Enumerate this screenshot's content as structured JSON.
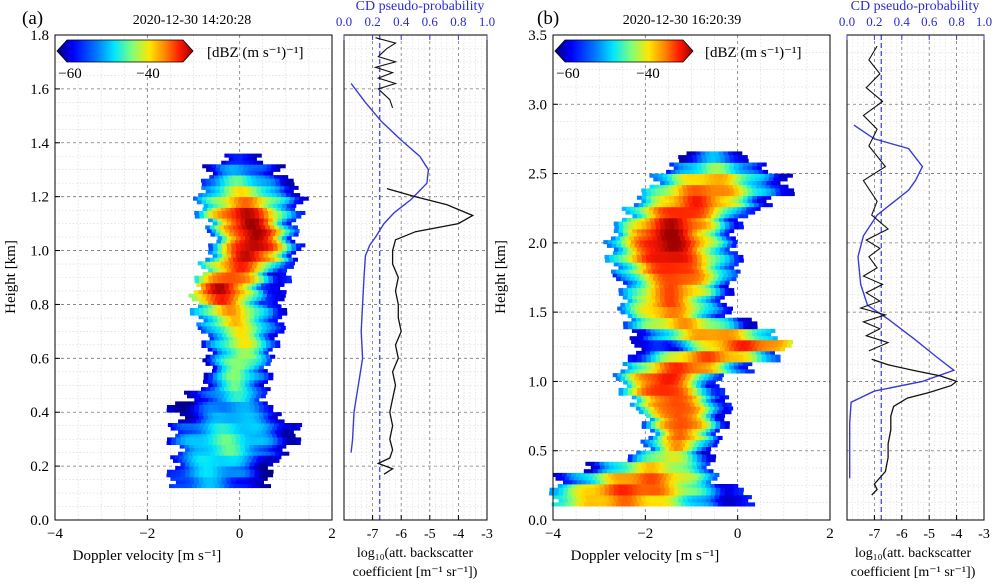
{
  "colors": {
    "black_line": "#111111",
    "blue_line": "#3a3ad8",
    "grid": "#9a9a9a",
    "colormap": [
      "#00007f",
      "#0000ff",
      "#0080ff",
      "#00e5ff",
      "#7dff7a",
      "#ffe600",
      "#ff8000",
      "#ff1a00",
      "#9e0000"
    ]
  },
  "chart_data": [
    {
      "panel": "(a)",
      "timestamp": "2020-12-30 14:20:28",
      "type": "heatmap",
      "colorbar": {
        "label": "[dBZ (m s⁻¹)⁻¹]",
        "ticks": [
          "−60",
          "−40"
        ]
      },
      "xlabel": "Doppler velocity [m s⁻¹]",
      "ylabel": "Height [km]",
      "xlim": [
        -4,
        2
      ],
      "ylim": [
        0,
        1.8
      ],
      "xticks": [
        "−4",
        "−2",
        "0",
        "2"
      ],
      "yticks": [
        "0.0",
        "0.2",
        "0.4",
        "0.6",
        "0.8",
        "1.0",
        "1.2",
        "1.4",
        "1.6",
        "1.8"
      ],
      "spectrum": [
        {
          "h": 0.14,
          "lo": -1.5,
          "hi": 0.55,
          "c": -0.7,
          "i": 0.3
        },
        {
          "h": 0.18,
          "lo": -1.5,
          "hi": 0.6,
          "c": -0.6,
          "i": 0.35
        },
        {
          "h": 0.22,
          "lo": -1.4,
          "hi": 0.8,
          "c": -0.5,
          "i": 0.4
        },
        {
          "h": 0.26,
          "lo": -1.3,
          "hi": 1.0,
          "c": -0.3,
          "i": 0.45
        },
        {
          "h": 0.3,
          "lo": -1.5,
          "hi": 1.25,
          "c": -0.3,
          "i": 0.45
        },
        {
          "h": 0.34,
          "lo": -1.45,
          "hi": 1.2,
          "c": -0.2,
          "i": 0.4
        },
        {
          "h": 0.38,
          "lo": -1.3,
          "hi": 0.9,
          "c": -0.1,
          "i": 0.35
        },
        {
          "h": 0.42,
          "lo": -1.5,
          "hi": 0.6,
          "c": -0.1,
          "i": 0.3
        },
        {
          "h": 0.46,
          "lo": -1.1,
          "hi": 0.5,
          "c": -0.1,
          "i": 0.4
        },
        {
          "h": 0.5,
          "lo": -0.8,
          "hi": 0.6,
          "c": -0.1,
          "i": 0.45
        },
        {
          "h": 0.54,
          "lo": -0.7,
          "hi": 0.6,
          "c": -0.05,
          "i": 0.5
        },
        {
          "h": 0.58,
          "lo": -0.7,
          "hi": 0.6,
          "c": 0.0,
          "i": 0.55
        },
        {
          "h": 0.62,
          "lo": -0.7,
          "hi": 0.7,
          "c": 0.05,
          "i": 0.55
        },
        {
          "h": 0.66,
          "lo": -0.75,
          "hi": 0.8,
          "c": 0.05,
          "i": 0.6
        },
        {
          "h": 0.7,
          "lo": -0.8,
          "hi": 0.85,
          "c": 0.0,
          "i": 0.6
        },
        {
          "h": 0.74,
          "lo": -0.9,
          "hi": 0.9,
          "c": -0.1,
          "i": 0.65
        },
        {
          "h": 0.78,
          "lo": -1.0,
          "hi": 0.9,
          "c": -0.2,
          "i": 0.7
        },
        {
          "h": 0.82,
          "lo": -1.0,
          "hi": 0.9,
          "c": -0.4,
          "i": 0.85
        },
        {
          "h": 0.86,
          "lo": -0.95,
          "hi": 0.95,
          "c": -0.4,
          "i": 0.95
        },
        {
          "h": 0.9,
          "lo": -0.9,
          "hi": 1.0,
          "c": -0.2,
          "i": 0.85
        },
        {
          "h": 0.94,
          "lo": -0.8,
          "hi": 1.1,
          "c": 0.0,
          "i": 0.85
        },
        {
          "h": 0.98,
          "lo": -0.7,
          "hi": 1.2,
          "c": 0.2,
          "i": 0.95
        },
        {
          "h": 1.02,
          "lo": -0.6,
          "hi": 1.25,
          "c": 0.3,
          "i": 1.0
        },
        {
          "h": 1.06,
          "lo": -0.6,
          "hi": 1.2,
          "c": 0.3,
          "i": 1.0
        },
        {
          "h": 1.1,
          "lo": -0.7,
          "hi": 1.15,
          "c": 0.2,
          "i": 1.0
        },
        {
          "h": 1.14,
          "lo": -0.9,
          "hi": 1.25,
          "c": 0.1,
          "i": 0.95
        },
        {
          "h": 1.18,
          "lo": -0.9,
          "hi": 1.3,
          "c": 0.1,
          "i": 0.75
        },
        {
          "h": 1.22,
          "lo": -0.85,
          "hi": 1.2,
          "c": 0.05,
          "i": 0.6
        },
        {
          "h": 1.26,
          "lo": -0.75,
          "hi": 1.05,
          "c": 0.0,
          "i": 0.45
        },
        {
          "h": 1.3,
          "lo": -0.7,
          "hi": 0.8,
          "c": 0.0,
          "i": 0.3
        },
        {
          "h": 1.34,
          "lo": -0.35,
          "hi": 0.45,
          "c": 0.0,
          "i": 0.2
        }
      ],
      "profile_top_axis": {
        "label": "CD pseudo-probability",
        "range": [
          0,
          1
        ],
        "ticks": [
          "0.0",
          "0.2",
          "0.4",
          "0.6",
          "0.8",
          "1.0"
        ]
      },
      "profile_xlabel_line1": "log₁₀(att. backscatter",
      "profile_xlabel_line2": "coefficient [m⁻¹ sr⁻¹])",
      "profile_xlim": [
        -8,
        -3
      ],
      "profile_xticks": [
        "-7",
        "-6",
        "-5",
        "-4",
        "-3"
      ],
      "threshold_probability": 0.25,
      "backscatter": [
        [
          -6.6,
          0.17
        ],
        [
          -6.3,
          0.19
        ],
        [
          -6.8,
          0.21
        ],
        [
          -6.4,
          0.23
        ],
        [
          -6.3,
          0.26
        ],
        [
          -6.4,
          0.3
        ],
        [
          -6.3,
          0.35
        ],
        [
          -6.4,
          0.4
        ],
        [
          -6.3,
          0.45
        ],
        [
          -6.2,
          0.5
        ],
        [
          -6.3,
          0.55
        ],
        [
          -6.1,
          0.6
        ],
        [
          -6.2,
          0.65
        ],
        [
          -6.0,
          0.7
        ],
        [
          -6.1,
          0.75
        ],
        [
          -6.1,
          0.8
        ],
        [
          -6.2,
          0.85
        ],
        [
          -6.1,
          0.9
        ],
        [
          -6.3,
          0.95
        ],
        [
          -6.3,
          1.0
        ],
        [
          -6.2,
          1.04
        ],
        [
          -5.5,
          1.07
        ],
        [
          -4.0,
          1.1
        ],
        [
          -3.5,
          1.13
        ],
        [
          -4.4,
          1.17
        ],
        [
          -5.5,
          1.2
        ],
        [
          -6.5,
          1.23
        ]
      ],
      "backscatter_top": [
        [
          -6.3,
          1.53
        ],
        [
          -6.4,
          1.56
        ],
        [
          -6.8,
          1.6
        ],
        [
          -6.2,
          1.62
        ],
        [
          -6.8,
          1.64
        ],
        [
          -6.3,
          1.66
        ],
        [
          -6.9,
          1.68
        ],
        [
          -6.2,
          1.7
        ],
        [
          -6.8,
          1.72
        ],
        [
          -6.5,
          1.75
        ],
        [
          -6.2,
          1.77
        ],
        [
          -6.9,
          1.79
        ]
      ],
      "probability": [
        [
          0.05,
          0.25
        ],
        [
          0.06,
          0.3
        ],
        [
          0.07,
          0.4
        ],
        [
          0.1,
          0.5
        ],
        [
          0.13,
          0.6
        ],
        [
          0.12,
          0.7
        ],
        [
          0.13,
          0.8
        ],
        [
          0.14,
          0.9
        ],
        [
          0.15,
          0.98
        ],
        [
          0.18,
          1.02
        ],
        [
          0.22,
          1.05
        ],
        [
          0.28,
          1.1
        ],
        [
          0.35,
          1.14
        ],
        [
          0.47,
          1.19
        ],
        [
          0.58,
          1.25
        ],
        [
          0.59,
          1.3
        ],
        [
          0.53,
          1.35
        ],
        [
          0.4,
          1.41
        ],
        [
          0.26,
          1.48
        ],
        [
          0.15,
          1.55
        ],
        [
          0.05,
          1.62
        ]
      ]
    },
    {
      "panel": "(b)",
      "timestamp": "2020-12-30 16:20:39",
      "type": "heatmap",
      "colorbar": {
        "label": "[dBZ (m s⁻¹)⁻¹]",
        "ticks": [
          "−60",
          "−40"
        ]
      },
      "xlabel": "Doppler velocity [m s⁻¹]",
      "ylabel": "Height [km]",
      "xlim": [
        -4,
        2
      ],
      "ylim": [
        0,
        3.5
      ],
      "xticks": [
        "−4",
        "−2",
        "0",
        "2"
      ],
      "yticks": [
        "0.0",
        "0.5",
        "1.0",
        "1.5",
        "2.0",
        "2.5",
        "3.0",
        "3.5"
      ],
      "spectrum": [
        {
          "h": 0.14,
          "lo": -4.0,
          "hi": 0.3,
          "c": -2.5,
          "i": 0.75
        },
        {
          "h": 0.22,
          "lo": -4.0,
          "hi": 0.0,
          "c": -2.3,
          "i": 0.85
        },
        {
          "h": 0.3,
          "lo": -3.9,
          "hi": -0.5,
          "c": -2.0,
          "i": 0.8
        },
        {
          "h": 0.38,
          "lo": -3.3,
          "hi": -0.6,
          "c": -1.8,
          "i": 0.65
        },
        {
          "h": 0.46,
          "lo": -2.3,
          "hi": -0.6,
          "c": -1.5,
          "i": 0.6
        },
        {
          "h": 0.54,
          "lo": -2.0,
          "hi": -0.5,
          "c": -1.3,
          "i": 0.7
        },
        {
          "h": 0.62,
          "lo": -1.9,
          "hi": -0.4,
          "c": -1.2,
          "i": 0.8
        },
        {
          "h": 0.7,
          "lo": -2.0,
          "hi": -0.3,
          "c": -1.2,
          "i": 0.85
        },
        {
          "h": 0.78,
          "lo": -2.1,
          "hi": -0.2,
          "c": -1.3,
          "i": 0.85
        },
        {
          "h": 0.86,
          "lo": -2.3,
          "hi": -0.2,
          "c": -1.4,
          "i": 0.85
        },
        {
          "h": 0.94,
          "lo": -2.5,
          "hi": -0.4,
          "c": -1.6,
          "i": 0.9
        },
        {
          "h": 1.02,
          "lo": -2.6,
          "hi": -0.4,
          "c": -1.6,
          "i": 0.9
        },
        {
          "h": 1.1,
          "lo": -2.5,
          "hi": 0.3,
          "c": -1.2,
          "i": 0.85
        },
        {
          "h": 1.18,
          "lo": -2.3,
          "hi": 0.8,
          "c": -0.6,
          "i": 0.8
        },
        {
          "h": 1.26,
          "lo": -2.2,
          "hi": 1.1,
          "c": 0.2,
          "i": 0.85
        },
        {
          "h": 1.34,
          "lo": -2.3,
          "hi": 0.8,
          "c": -0.5,
          "i": 0.75
        },
        {
          "h": 1.42,
          "lo": -2.4,
          "hi": 0.3,
          "c": -1.2,
          "i": 0.7
        },
        {
          "h": 1.5,
          "lo": -2.5,
          "hi": -0.2,
          "c": -1.5,
          "i": 0.75
        },
        {
          "h": 1.58,
          "lo": -2.5,
          "hi": -0.3,
          "c": -1.5,
          "i": 0.8
        },
        {
          "h": 1.66,
          "lo": -2.5,
          "hi": -0.2,
          "c": -1.4,
          "i": 0.8
        },
        {
          "h": 1.74,
          "lo": -2.6,
          "hi": -0.1,
          "c": -1.3,
          "i": 0.85
        },
        {
          "h": 1.82,
          "lo": -2.7,
          "hi": 0.0,
          "c": -1.4,
          "i": 0.9
        },
        {
          "h": 1.9,
          "lo": -2.8,
          "hi": 0.0,
          "c": -1.5,
          "i": 0.95
        },
        {
          "h": 1.98,
          "lo": -2.8,
          "hi": -0.1,
          "c": -1.5,
          "i": 1.0
        },
        {
          "h": 2.06,
          "lo": -2.7,
          "hi": -0.1,
          "c": -1.5,
          "i": 1.0
        },
        {
          "h": 2.14,
          "lo": -2.6,
          "hi": 0.0,
          "c": -1.4,
          "i": 0.95
        },
        {
          "h": 2.22,
          "lo": -2.4,
          "hi": 0.3,
          "c": -1.2,
          "i": 0.9
        },
        {
          "h": 2.3,
          "lo": -2.2,
          "hi": 0.7,
          "c": -0.9,
          "i": 0.85
        },
        {
          "h": 2.38,
          "lo": -2.0,
          "hi": 1.1,
          "c": -0.7,
          "i": 0.8
        },
        {
          "h": 2.46,
          "lo": -1.8,
          "hi": 1.0,
          "c": -0.6,
          "i": 0.7
        },
        {
          "h": 2.54,
          "lo": -1.5,
          "hi": 0.6,
          "c": -0.5,
          "i": 0.5
        },
        {
          "h": 2.62,
          "lo": -1.2,
          "hi": 0.1,
          "c": -0.5,
          "i": 0.3
        }
      ],
      "profile_top_axis": {
        "label": "CD pseudo-probability",
        "range": [
          0,
          1
        ],
        "ticks": [
          "0.0",
          "0.2",
          "0.4",
          "0.6",
          "0.8",
          "1.0"
        ]
      },
      "profile_xlabel_line1": "log₁₀(att. backscatter",
      "profile_xlabel_line2": "coefficient [m⁻¹ sr⁻¹])",
      "profile_xlim": [
        -8,
        -3
      ],
      "profile_xticks": [
        "-7",
        "-6",
        "-5",
        "-4",
        "-3"
      ],
      "threshold_probability": 0.25,
      "backscatter": [
        [
          -7.1,
          0.18
        ],
        [
          -6.9,
          0.22
        ],
        [
          -7.0,
          0.26
        ],
        [
          -6.6,
          0.35
        ],
        [
          -6.5,
          0.45
        ],
        [
          -6.5,
          0.55
        ],
        [
          -6.4,
          0.65
        ],
        [
          -6.4,
          0.75
        ],
        [
          -6.3,
          0.82
        ],
        [
          -5.8,
          0.88
        ],
        [
          -5.0,
          0.92
        ],
        [
          -4.2,
          0.97
        ],
        [
          -4.0,
          1.0
        ],
        [
          -4.6,
          1.04
        ],
        [
          -5.6,
          1.08
        ],
        [
          -6.5,
          1.12
        ],
        [
          -7.1,
          1.16
        ]
      ],
      "backscatter_top": [
        [
          -7.2,
          1.22
        ],
        [
          -6.5,
          1.28
        ],
        [
          -7.3,
          1.33
        ],
        [
          -6.8,
          1.38
        ],
        [
          -7.4,
          1.43
        ],
        [
          -6.6,
          1.48
        ],
        [
          -7.5,
          1.53
        ],
        [
          -6.8,
          1.58
        ],
        [
          -7.3,
          1.64
        ],
        [
          -6.7,
          1.7
        ],
        [
          -7.4,
          1.76
        ],
        [
          -6.9,
          1.82
        ],
        [
          -7.2,
          1.9
        ],
        [
          -6.8,
          1.96
        ],
        [
          -7.3,
          2.02
        ],
        [
          -6.5,
          2.1
        ],
        [
          -7.1,
          2.2
        ],
        [
          -6.9,
          2.3
        ],
        [
          -7.4,
          2.45
        ],
        [
          -6.6,
          2.55
        ],
        [
          -7.2,
          2.7
        ],
        [
          -6.9,
          2.82
        ],
        [
          -7.4,
          2.92
        ],
        [
          -6.7,
          3.02
        ],
        [
          -7.3,
          3.12
        ],
        [
          -6.8,
          3.22
        ],
        [
          -7.2,
          3.32
        ],
        [
          -6.9,
          3.42
        ]
      ],
      "probability": [
        [
          0.02,
          0.3
        ],
        [
          0.02,
          0.7
        ],
        [
          0.03,
          0.85
        ],
        [
          0.2,
          0.93
        ],
        [
          0.55,
          1.0
        ],
        [
          0.78,
          1.08
        ],
        [
          0.65,
          1.18
        ],
        [
          0.5,
          1.3
        ],
        [
          0.3,
          1.45
        ],
        [
          0.15,
          1.55
        ],
        [
          0.1,
          1.7
        ],
        [
          0.08,
          1.9
        ],
        [
          0.12,
          2.05
        ],
        [
          0.22,
          2.2
        ],
        [
          0.45,
          2.38
        ],
        [
          0.5,
          2.45
        ],
        [
          0.55,
          2.55
        ],
        [
          0.45,
          2.68
        ],
        [
          0.2,
          2.75
        ],
        [
          0.05,
          2.85
        ]
      ]
    }
  ]
}
